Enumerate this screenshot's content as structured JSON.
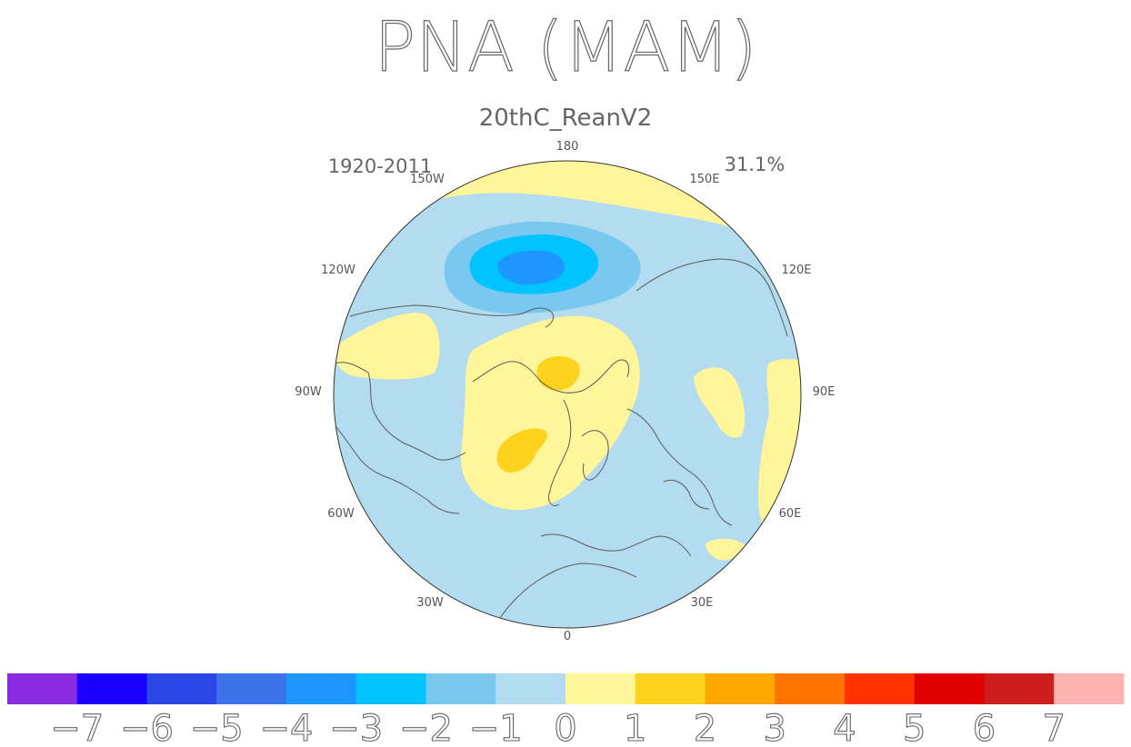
{
  "title": "PNA (MAM)",
  "subtitle": "20thC_ReanV2",
  "period": "1920-2011",
  "variance": "31.1%",
  "longitude_labels": {
    "top": "180",
    "top_left": "150W",
    "top_right": "150E",
    "upper_left": "120W",
    "upper_right": "120E",
    "left": "90W",
    "right": "90E",
    "lower_left": "60W",
    "lower_right": "60E",
    "bottom_left": "30W",
    "bottom_right": "30E",
    "bottom": "0"
  },
  "colorbar": {
    "colors": [
      "#8a2be2",
      "#1a00ff",
      "#2b47e6",
      "#3a74e8",
      "#1e96ff",
      "#00c3ff",
      "#78c8f0",
      "#b4dcf0",
      "#fff59a",
      "#ffd21e",
      "#ffa800",
      "#ff7300",
      "#ff3200",
      "#e10000",
      "#cd1e1e",
      "#ffb4b4"
    ],
    "labels": [
      "-7",
      "-6",
      "-5",
      "-4",
      "-3",
      "-2",
      "-1",
      "0",
      "1",
      "2",
      "3",
      "4",
      "5",
      "6",
      "7"
    ]
  }
}
